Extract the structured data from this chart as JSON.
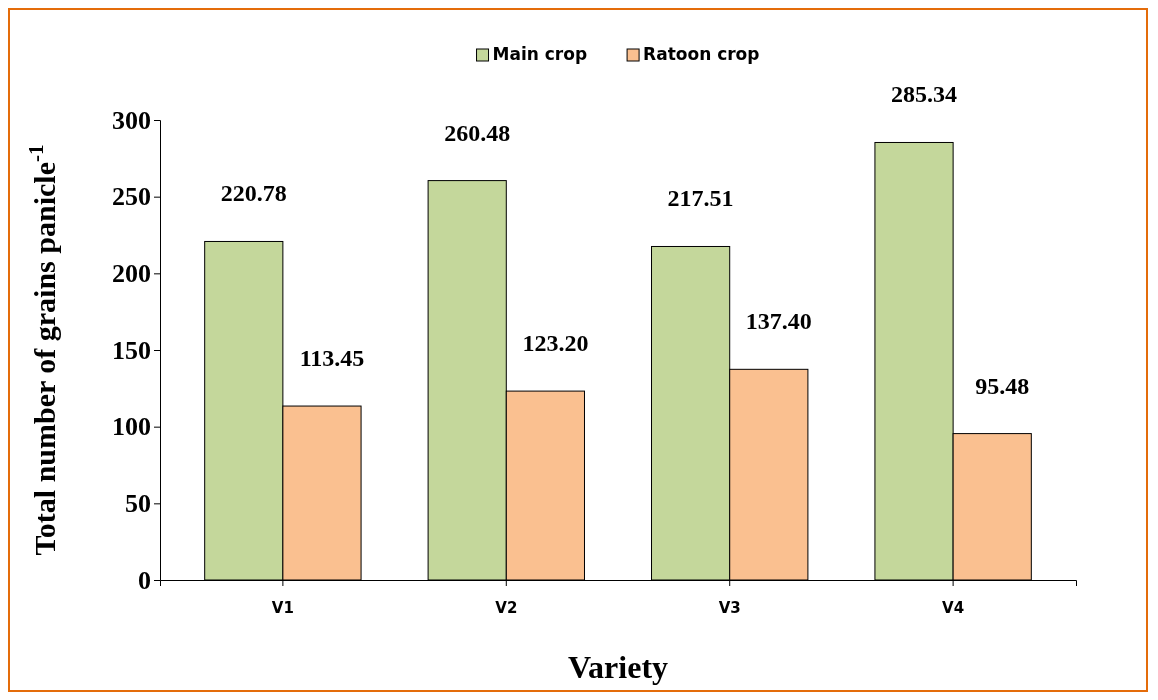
{
  "chart_data": {
    "type": "bar",
    "xlabel": "Variety",
    "ylabel": "Total number of grains panicle$^{-1}$",
    "categories": [
      "V1",
      "V2",
      "V3",
      "V4"
    ],
    "series": [
      {
        "name": "Main crop",
        "color": "#c4d79b",
        "values": [
          220.78,
          260.48,
          217.51,
          285.34
        ],
        "value_labels": [
          "220.78",
          "260.48",
          "217.51",
          "285.34"
        ]
      },
      {
        "name": "Ratoon crop",
        "color": "#fac090",
        "values": [
          113.45,
          123.2,
          137.4,
          95.48
        ],
        "value_labels": [
          "113.45",
          "123.20",
          "137.40",
          "95.48"
        ]
      }
    ],
    "ylim": [
      0,
      300
    ],
    "yticks": [
      0,
      50,
      100,
      150,
      200,
      250,
      300
    ],
    "grid": false,
    "legend": "top"
  }
}
